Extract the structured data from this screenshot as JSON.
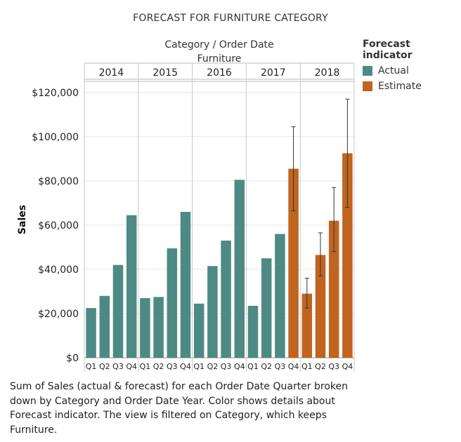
{
  "chart_data": {
    "type": "bar",
    "title": "FORECAST FOR FURNITURE CATEGORY",
    "header_label": "Category / Order Date",
    "category": "Furniture",
    "ylabel": "Sales",
    "ylim": [
      0,
      125000
    ],
    "yticks": [
      0,
      20000,
      40000,
      60000,
      80000,
      100000,
      120000
    ],
    "ytick_labels": [
      "$0",
      "$20,000",
      "$40,000",
      "$60,000",
      "$80,000",
      "$100,000",
      "$120,000"
    ],
    "grid": true,
    "legend": {
      "title": "Forecast indicator",
      "position": "right",
      "items": [
        {
          "label": "Actual",
          "color": "#4e8a84"
        },
        {
          "label": "Estimate",
          "color": "#c0641f"
        }
      ]
    },
    "years": [
      {
        "year": "2014",
        "quarters": [
          {
            "q": "Q1",
            "value": 22500,
            "indicator": "Actual"
          },
          {
            "q": "Q2",
            "value": 28000,
            "indicator": "Actual"
          },
          {
            "q": "Q3",
            "value": 42000,
            "indicator": "Actual"
          },
          {
            "q": "Q4",
            "value": 64500,
            "indicator": "Actual"
          }
        ]
      },
      {
        "year": "2015",
        "quarters": [
          {
            "q": "Q1",
            "value": 27000,
            "indicator": "Actual"
          },
          {
            "q": "Q2",
            "value": 27500,
            "indicator": "Actual"
          },
          {
            "q": "Q3",
            "value": 49500,
            "indicator": "Actual"
          },
          {
            "q": "Q4",
            "value": 66000,
            "indicator": "Actual"
          }
        ]
      },
      {
        "year": "2016",
        "quarters": [
          {
            "q": "Q1",
            "value": 24500,
            "indicator": "Actual"
          },
          {
            "q": "Q2",
            "value": 41500,
            "indicator": "Actual"
          },
          {
            "q": "Q3",
            "value": 53000,
            "indicator": "Actual"
          },
          {
            "q": "Q4",
            "value": 80500,
            "indicator": "Actual"
          }
        ]
      },
      {
        "year": "2017",
        "quarters": [
          {
            "q": "Q1",
            "value": 23500,
            "indicator": "Actual"
          },
          {
            "q": "Q2",
            "value": 45000,
            "indicator": "Actual"
          },
          {
            "q": "Q3",
            "value": 56000,
            "indicator": "Actual"
          },
          {
            "q": "Q4",
            "value": 85500,
            "indicator": "Estimate",
            "low": 66500,
            "high": 104500
          }
        ]
      },
      {
        "year": "2018",
        "quarters": [
          {
            "q": "Q1",
            "value": 29000,
            "indicator": "Estimate",
            "low": 22500,
            "high": 36000
          },
          {
            "q": "Q2",
            "value": 46500,
            "indicator": "Estimate",
            "low": 37000,
            "high": 56500
          },
          {
            "q": "Q3",
            "value": 62000,
            "indicator": "Estimate",
            "low": 48000,
            "high": 77000
          },
          {
            "q": "Q4",
            "value": 92500,
            "indicator": "Estimate",
            "low": 68000,
            "high": 117000
          }
        ]
      }
    ]
  },
  "caption": "Sum of Sales (actual & forecast) for each Order Date Quarter broken down by Category and Order Date Year. Color shows details about Forecast indicator. The view is filtered on Category, which keeps Furniture."
}
